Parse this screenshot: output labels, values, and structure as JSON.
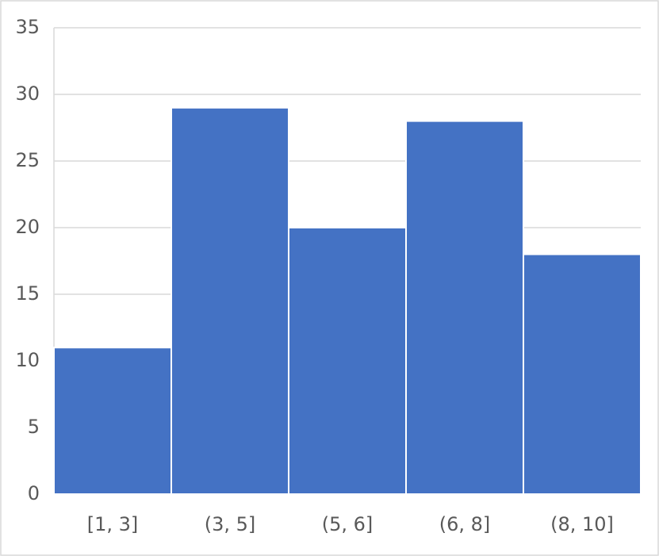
{
  "chart_data": {
    "type": "bar",
    "categories": [
      "[1, 3]",
      "(3, 5]",
      "(5, 6]",
      "(6, 8]",
      "(8, 10]"
    ],
    "values": [
      11,
      29,
      20,
      28,
      18
    ],
    "color": "#4472c4",
    "ylim": [
      0,
      35
    ],
    "yticks": [
      0,
      5,
      10,
      15,
      20,
      25,
      30,
      35
    ],
    "grid": true
  }
}
